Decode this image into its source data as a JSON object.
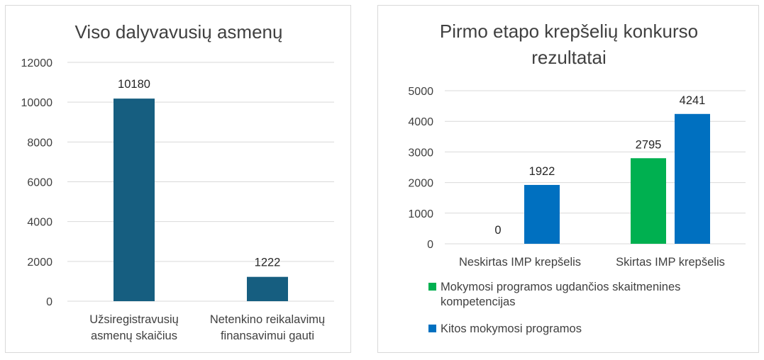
{
  "chart_data": [
    {
      "type": "bar",
      "title": "Viso dalyvavusių asmenų",
      "categories": [
        [
          "Užsiregistravusių",
          "asmenų skaičius"
        ],
        [
          "Netenkino reikalavimų",
          "finansavimui gauti"
        ]
      ],
      "values": [
        10180,
        1222
      ],
      "data_labels": [
        "10180",
        "1222"
      ],
      "yticks": [
        "12000",
        "10000",
        "8000",
        "6000",
        "4000",
        "2000",
        "0"
      ],
      "ylim": [
        0,
        12000
      ],
      "grid": true,
      "colors": [
        "#165e80"
      ]
    },
    {
      "type": "bar",
      "title": [
        "Pirmo etapo krepšelių konkurso",
        "rezultatai"
      ],
      "categories": [
        "Neskirtas IMP krepšelis",
        "Skirtas IMP krepšelis"
      ],
      "series": [
        {
          "name": [
            "Mokymosi programos ugdančios skaitmenines",
            "kompetencijas"
          ],
          "values": [
            0,
            2795
          ],
          "labels": [
            "0",
            "2795"
          ],
          "color": "#00b050"
        },
        {
          "name": [
            "Kitos mokymosi programos"
          ],
          "values": [
            1922,
            4241
          ],
          "labels": [
            "1922",
            "4241"
          ],
          "color": "#0070c0"
        }
      ],
      "yticks": [
        "5000",
        "4000",
        "3000",
        "2000",
        "1000",
        "0"
      ],
      "ylim": [
        0,
        5000
      ],
      "grid": true,
      "legend_position": "bottom"
    }
  ]
}
